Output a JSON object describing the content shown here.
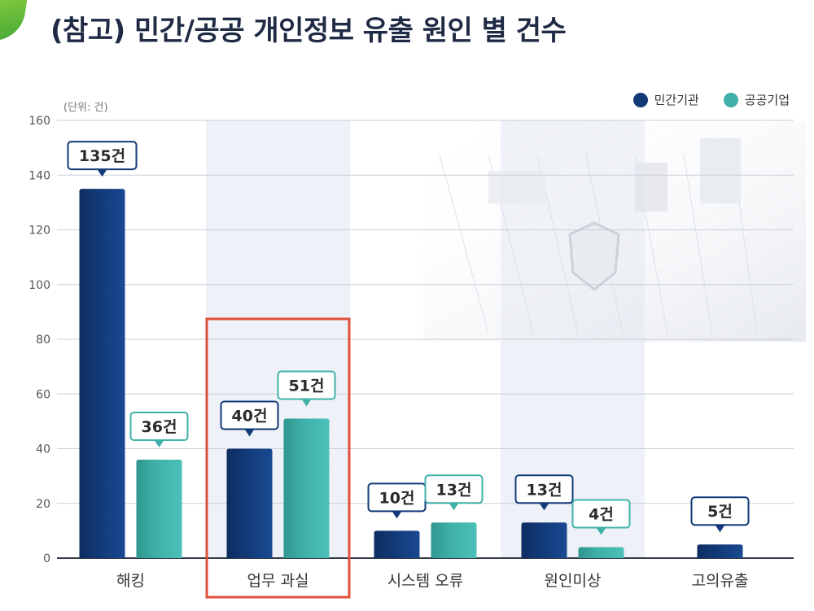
{
  "header": {
    "title": "(참고) 민간/공공 개인정보 유출 원인 별 건수"
  },
  "unit_label": "(단위: 건)",
  "colors": {
    "private": "#123a78",
    "public": "#3fb1a9",
    "highlight": "#e0503a"
  },
  "chart_data": {
    "type": "bar",
    "categories": [
      "해킹",
      "업무 과실",
      "시스템 오류",
      "원인미상",
      "고의유출"
    ],
    "series": [
      {
        "name": "민간기관",
        "values": [
          135,
          40,
          10,
          13,
          5
        ]
      },
      {
        "name": "공공기업",
        "values": [
          36,
          51,
          13,
          4,
          null
        ]
      }
    ],
    "data_labels": [
      [
        "135건",
        "40건",
        "10건",
        "13건",
        "5건"
      ],
      [
        "36건",
        "51건",
        "13건",
        "4건",
        null
      ]
    ],
    "y_ticks": [
      0,
      20,
      40,
      60,
      80,
      100,
      120,
      140,
      160
    ],
    "ylim": [
      0,
      160
    ],
    "highlighted_category": "업무 과실",
    "legend_position": "top-right",
    "grid": true
  }
}
